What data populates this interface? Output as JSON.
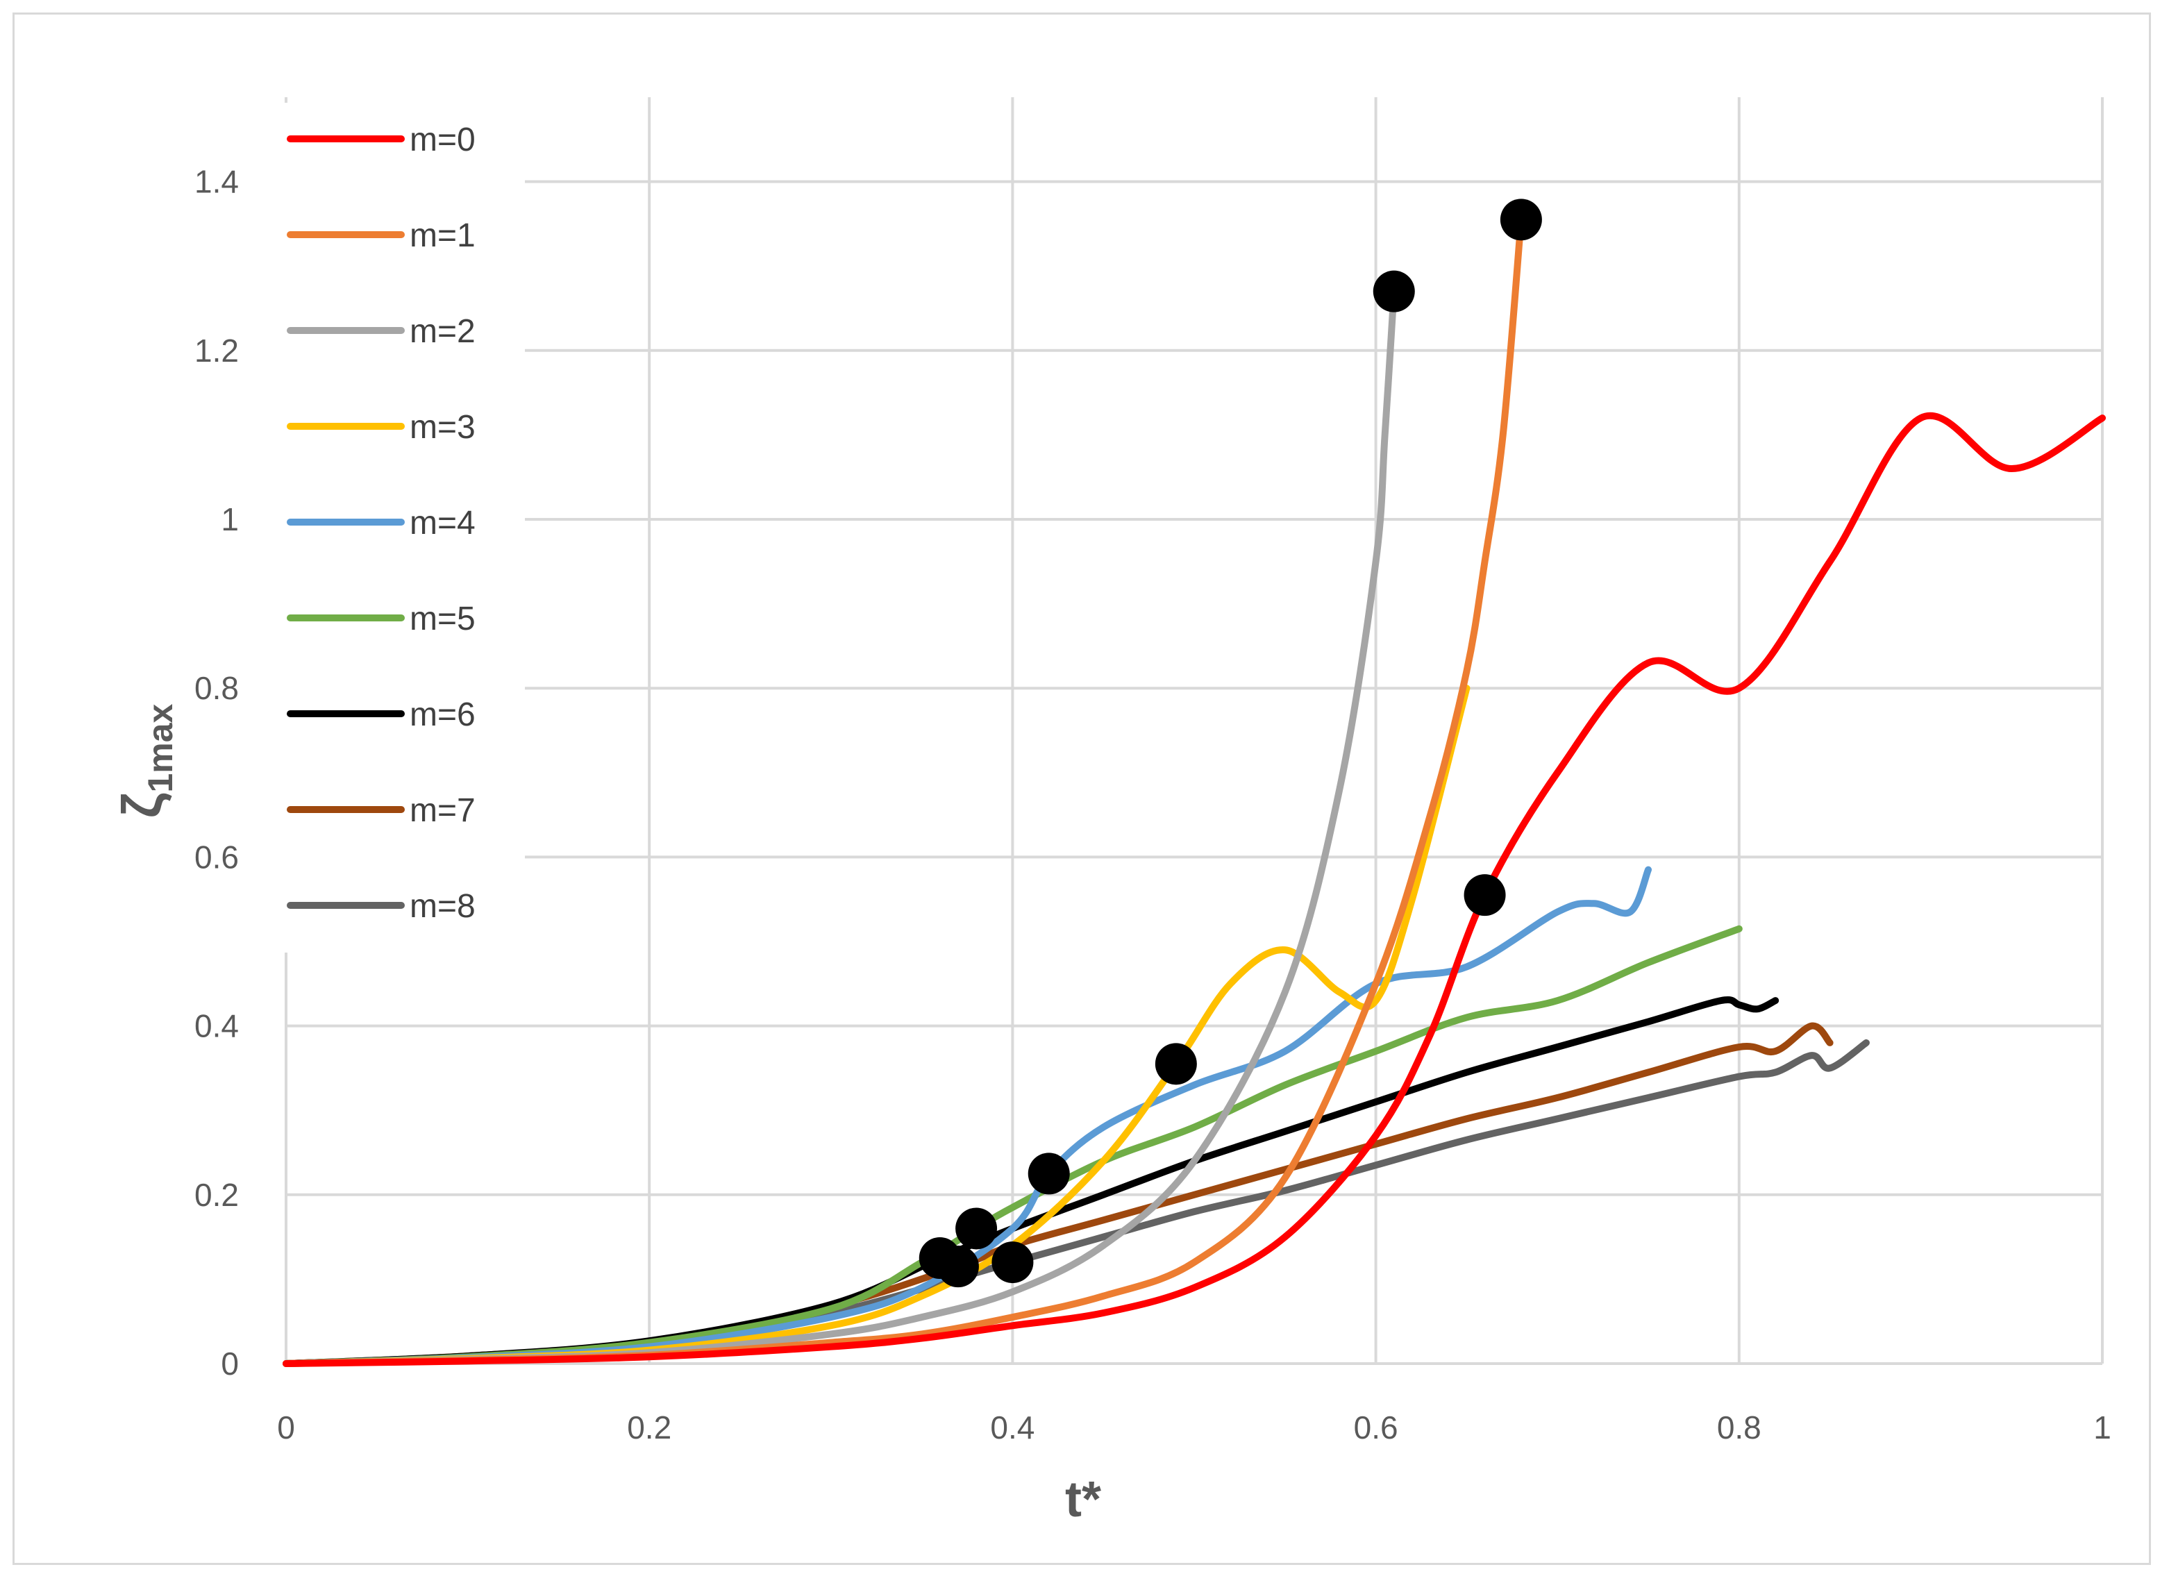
{
  "chart_data": {
    "type": "line",
    "xlabel": "t*",
    "ylabel_main": "ζ",
    "ylabel_sub": "1max",
    "xlim": [
      0,
      1
    ],
    "ylim": [
      0,
      1.4
    ],
    "x_ticks": [
      "0",
      "0.2",
      "0.4",
      "0.6",
      "0.8",
      "1"
    ],
    "y_ticks": [
      "0",
      "0.2",
      "0.4",
      "0.6",
      "0.8",
      "1",
      "1.2",
      "1.4"
    ],
    "x_tick_values": [
      0,
      0.2,
      0.4,
      0.6,
      0.8,
      1
    ],
    "y_tick_values": [
      0,
      0.2,
      0.4,
      0.6,
      0.8,
      1,
      1.2,
      1.4
    ],
    "grid": true,
    "legend_position": "top-left",
    "series": [
      {
        "name": "m=0",
        "color": "#ff0000",
        "x": [
          0,
          0.1,
          0.2,
          0.3,
          0.35,
          0.4,
          0.45,
          0.5,
          0.55,
          0.6,
          0.63,
          0.66,
          0.7,
          0.75,
          0.8,
          0.85,
          0.9,
          0.95,
          1.0
        ],
        "y": [
          0,
          0.003,
          0.008,
          0.02,
          0.03,
          0.045,
          0.06,
          0.09,
          0.15,
          0.27,
          0.39,
          0.555,
          0.7,
          0.83,
          0.8,
          0.95,
          1.12,
          1.06,
          1.12
        ]
      },
      {
        "name": "m=1",
        "color": "#ed7d31",
        "x": [
          0,
          0.1,
          0.2,
          0.3,
          0.35,
          0.4,
          0.45,
          0.5,
          0.55,
          0.6,
          0.63,
          0.65,
          0.66,
          0.67,
          0.68
        ],
        "y": [
          0,
          0.004,
          0.01,
          0.025,
          0.035,
          0.055,
          0.08,
          0.12,
          0.22,
          0.45,
          0.65,
          0.82,
          0.95,
          1.1,
          1.355
        ]
      },
      {
        "name": "m=2",
        "color": "#a5a5a5",
        "x": [
          0,
          0.1,
          0.2,
          0.3,
          0.35,
          0.4,
          0.45,
          0.5,
          0.55,
          0.58,
          0.6,
          0.605,
          0.61
        ],
        "y": [
          0,
          0.005,
          0.013,
          0.035,
          0.055,
          0.085,
          0.14,
          0.24,
          0.44,
          0.68,
          0.95,
          1.1,
          1.27
        ]
      },
      {
        "name": "m=3",
        "color": "#ffc000",
        "x": [
          0,
          0.1,
          0.2,
          0.3,
          0.35,
          0.4,
          0.45,
          0.49,
          0.52,
          0.55,
          0.58,
          0.6,
          0.62,
          0.65
        ],
        "y": [
          0,
          0.006,
          0.016,
          0.045,
          0.08,
          0.14,
          0.24,
          0.355,
          0.45,
          0.49,
          0.44,
          0.43,
          0.55,
          0.8
        ]
      },
      {
        "name": "m=4",
        "color": "#5b9bd5",
        "x": [
          0,
          0.1,
          0.2,
          0.3,
          0.35,
          0.4,
          0.42,
          0.45,
          0.5,
          0.55,
          0.6,
          0.65,
          0.7,
          0.72,
          0.74,
          0.75
        ],
        "y": [
          0,
          0.007,
          0.02,
          0.055,
          0.09,
          0.16,
          0.225,
          0.28,
          0.33,
          0.37,
          0.45,
          0.47,
          0.535,
          0.545,
          0.535,
          0.585
        ]
      },
      {
        "name": "m=5",
        "color": "#70ad47",
        "x": [
          0,
          0.1,
          0.2,
          0.3,
          0.35,
          0.38,
          0.4,
          0.45,
          0.5,
          0.55,
          0.6,
          0.65,
          0.7,
          0.75,
          0.8
        ],
        "y": [
          0,
          0.008,
          0.025,
          0.065,
          0.12,
          0.16,
          0.185,
          0.24,
          0.28,
          0.33,
          0.37,
          0.41,
          0.43,
          0.475,
          0.515
        ]
      },
      {
        "name": "m=6",
        "color": "#000000",
        "x": [
          0,
          0.1,
          0.2,
          0.3,
          0.36,
          0.4,
          0.45,
          0.5,
          0.55,
          0.6,
          0.65,
          0.7,
          0.75,
          0.79,
          0.8,
          0.81,
          0.82
        ],
        "y": [
          0,
          0.009,
          0.027,
          0.07,
          0.125,
          0.16,
          0.2,
          0.24,
          0.275,
          0.31,
          0.345,
          0.375,
          0.405,
          0.43,
          0.425,
          0.42,
          0.43
        ]
      },
      {
        "name": "m=7",
        "color": "#9e480e",
        "x": [
          0,
          0.1,
          0.2,
          0.3,
          0.37,
          0.4,
          0.45,
          0.5,
          0.55,
          0.6,
          0.65,
          0.7,
          0.75,
          0.8,
          0.82,
          0.84,
          0.85
        ],
        "y": [
          0,
          0.009,
          0.026,
          0.068,
          0.115,
          0.14,
          0.17,
          0.2,
          0.23,
          0.26,
          0.29,
          0.315,
          0.345,
          0.375,
          0.37,
          0.4,
          0.38
        ]
      },
      {
        "name": "m=8",
        "color": "#636363",
        "x": [
          0,
          0.1,
          0.2,
          0.3,
          0.4,
          0.45,
          0.5,
          0.55,
          0.6,
          0.65,
          0.7,
          0.75,
          0.8,
          0.82,
          0.84,
          0.85,
          0.87
        ],
        "y": [
          0,
          0.008,
          0.024,
          0.06,
          0.12,
          0.15,
          0.18,
          0.205,
          0.235,
          0.265,
          0.29,
          0.315,
          0.34,
          0.345,
          0.365,
          0.35,
          0.38
        ]
      }
    ],
    "markers": [
      {
        "x": 0.61,
        "y": 1.27
      },
      {
        "x": 0.68,
        "y": 1.355
      },
      {
        "x": 0.66,
        "y": 0.555
      },
      {
        "x": 0.49,
        "y": 0.355
      },
      {
        "x": 0.42,
        "y": 0.225
      },
      {
        "x": 0.38,
        "y": 0.16
      },
      {
        "x": 0.36,
        "y": 0.125
      },
      {
        "x": 0.37,
        "y": 0.115
      },
      {
        "x": 0.4,
        "y": 0.12
      }
    ],
    "marker_color": "#000000",
    "gridline_color": "#d9d9d9"
  }
}
